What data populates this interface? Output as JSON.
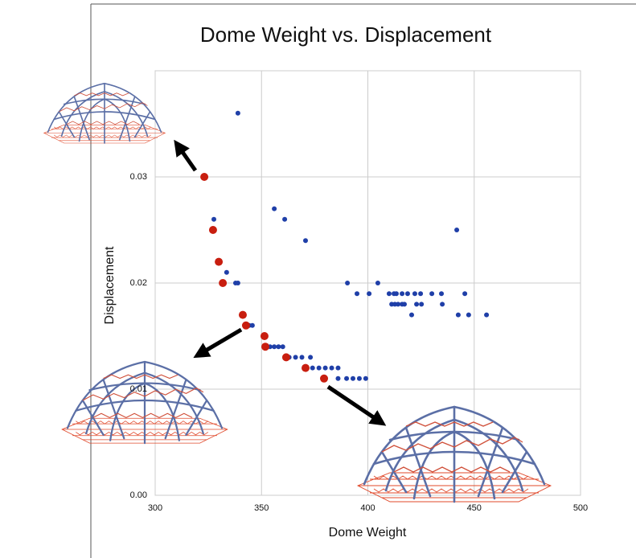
{
  "chart_data": {
    "type": "scatter",
    "title": "Dome Weight  vs.  Displacement",
    "x_label": "Dome Weight",
    "y_label": "Displacement",
    "xlim": [
      300,
      500
    ],
    "ylim": [
      0,
      0.04
    ],
    "xticks": [
      300,
      350,
      400,
      450,
      500
    ],
    "yticks": [
      {
        "value": 0,
        "label": "0.00"
      },
      0.01,
      0.02,
      0.03
    ],
    "grid": true,
    "series": [
      {
        "color": "#1f3fa8",
        "size": 3,
        "x": [
          338.9,
          327.6,
          333.6,
          337.8,
          338.9,
          356.0,
          360.9,
          370.7,
          344.2,
          345.7,
          354,
          356,
          358,
          360,
          363,
          366,
          369,
          373,
          374,
          377,
          380,
          383,
          386,
          386,
          390,
          393,
          396,
          399,
          390.4,
          404.7,
          394.9,
          400.6,
          410.0,
          412.3,
          413.4,
          416.1,
          418.7,
          422.1,
          424.8,
          430.1,
          434.6,
          445.6,
          411.2,
          412.7,
          414.2,
          416.1,
          417.2,
          422.9,
          425.2,
          435.0,
          420.6,
          442.5,
          447.4,
          455.8,
          441.8
        ],
        "values": [
          0.036,
          0.026,
          0.021,
          0.02,
          0.02,
          0.027,
          0.026,
          0.024,
          0.016,
          0.016,
          0.014,
          0.014,
          0.014,
          0.014,
          0.013,
          0.013,
          0.013,
          0.013,
          0.012,
          0.012,
          0.012,
          0.012,
          0.012,
          0.011,
          0.011,
          0.011,
          0.011,
          0.011,
          0.02,
          0.02,
          0.019,
          0.019,
          0.019,
          0.019,
          0.019,
          0.019,
          0.019,
          0.019,
          0.019,
          0.019,
          0.019,
          0.019,
          0.018,
          0.018,
          0.018,
          0.018,
          0.018,
          0.018,
          0.018,
          0.018,
          0.017,
          0.017,
          0.017,
          0.017,
          0.025
        ]
      },
      {
        "color": "#c81e0f",
        "size": 5,
        "x": [
          323.1,
          327.2,
          329.9,
          331.8,
          341.2,
          342.7,
          351.4,
          351.8,
          361.6,
          370.7,
          379.4
        ],
        "values": [
          0.03,
          0.025,
          0.022,
          0.02,
          0.017,
          0.016,
          0.015,
          0.014,
          0.013,
          0.012,
          0.011
        ]
      }
    ]
  }
}
